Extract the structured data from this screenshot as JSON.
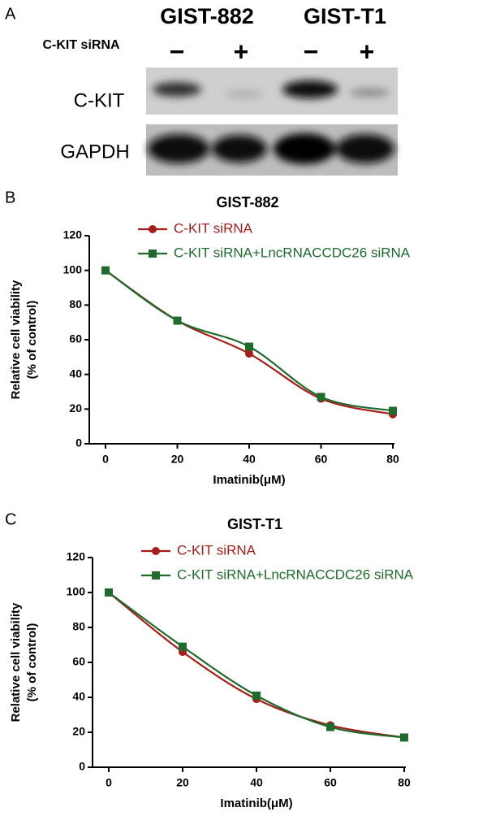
{
  "blot": {
    "panel_label": "A",
    "cell_lines": [
      "GIST-882",
      "GIST-T1"
    ],
    "row_label": "C-KIT siRNA",
    "signs": [
      "−",
      "+",
      "−",
      "+"
    ],
    "bands": [
      "C-KIT",
      "GAPDH"
    ]
  },
  "chart_data": [
    {
      "type": "line",
      "panel_label": "B",
      "title": "GIST-882",
      "ylabel": [
        "Relative cell viability",
        "(% of control)"
      ],
      "xlabel": "Imatinib(μM)",
      "x": [
        0,
        20,
        40,
        60,
        80
      ],
      "xlim": [
        0,
        80
      ],
      "xticks": [
        0,
        20,
        40,
        60,
        80
      ],
      "ylim": [
        0,
        120
      ],
      "yticks": [
        0,
        20,
        40,
        60,
        80,
        100,
        120
      ],
      "series": [
        {
          "name": "C-KIT siRNA",
          "color": "#a81c1c",
          "marker": "circle",
          "values": [
            100,
            71,
            52,
            26,
            17
          ]
        },
        {
          "name": "C-KIT siRNA+LncRNACCDC26 siRNA",
          "color": "#1e6b2c",
          "marker": "square",
          "values": [
            100,
            71,
            56,
            27,
            19
          ]
        }
      ]
    },
    {
      "type": "line",
      "panel_label": "C",
      "title": "GIST-T1",
      "ylabel": [
        "Relative cell viability",
        "(% of control)"
      ],
      "xlabel": "Imatinib(μM)",
      "x": [
        0,
        20,
        40,
        60,
        80
      ],
      "xlim": [
        0,
        80
      ],
      "xticks": [
        0,
        20,
        40,
        60,
        80
      ],
      "ylim": [
        0,
        120
      ],
      "yticks": [
        0,
        20,
        40,
        60,
        80,
        100,
        120
      ],
      "series": [
        {
          "name": "C-KIT siRNA",
          "color": "#a81c1c",
          "marker": "circle",
          "values": [
            100,
            66,
            39,
            24,
            17
          ]
        },
        {
          "name": "C-KIT siRNA+LncRNACCDC26 siRNA",
          "color": "#1e6b2c",
          "marker": "square",
          "values": [
            100,
            69,
            41,
            23,
            17
          ]
        }
      ]
    }
  ]
}
